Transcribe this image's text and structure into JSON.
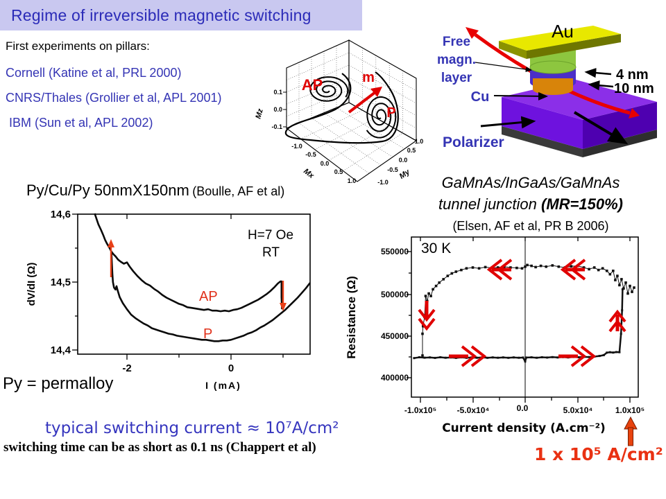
{
  "slide": {
    "title": "Regime of irreversible magnetic switching",
    "intro": "First experiments on pillars:",
    "references": [
      "Cornell (Katine et al, PRL 2000)",
      "CNRS/Thales (Grollier et al, APL 2001)",
      "IBM (Sun et al, APL 2002)"
    ],
    "py_note": "Py = permalloy",
    "typical_current": "typical switching current ≈ 10⁷A/cm²",
    "switching_time": "switching time can be as short as 0.1 ns (Chappert et al)",
    "threshold_label": "1 x 10⁵ A/cm²"
  },
  "device": {
    "au": "Au",
    "free_layer_lines": [
      "Free",
      "magn.",
      "layer"
    ],
    "cu": "Cu",
    "polarizer": "Polarizer",
    "t4": "4 nm",
    "t10": "10 nm",
    "colors": {
      "au_top": "#e8e800",
      "pillar_green": "#8dc63f",
      "free_blue": "#4b2fc8",
      "cu_orange": "#d8840a",
      "base_purple": "#8b2fe8",
      "arrow_red": "#e80000"
    }
  },
  "trajectory_plot": {
    "xlabel": "Mx",
    "ylabel": "My",
    "zlabel": "Mz",
    "xticks": [
      "-1.0",
      "-0.5",
      "0.0",
      "0.5",
      "1.0"
    ],
    "yticks": [
      "-1.0",
      "-0.5",
      "0.0",
      "0.5",
      "1.0"
    ],
    "zticks": [
      "0.1",
      "0.0",
      "-0.1"
    ],
    "ap": "AP",
    "p": "P",
    "m": "m"
  },
  "chart_data": [
    {
      "type": "line",
      "title": "Py/Cu/Py 50nmX150nm",
      "title_note": "(Boulle, AF et al)",
      "xlabel": "I (mA)",
      "ylabel": "dV/dI (Ω)",
      "xlim": [
        -2.95,
        1.52
      ],
      "ylim": [
        14.4,
        14.6
      ],
      "xticks": [
        -2,
        0
      ],
      "xtick_labels": [
        "-2",
        "0"
      ],
      "yticks": [
        14.6,
        14.5,
        14.4
      ],
      "ytick_labels": [
        "14,6",
        "14,5",
        "14,4"
      ],
      "grid": false,
      "annotations": {
        "field": "H=7 Oe",
        "temp": "RT",
        "ap": "AP",
        "p": "P"
      },
      "series": [
        {
          "name": "AP branch",
          "values": [
            [
              -2.62,
              14.601
            ],
            [
              -2.55,
              14.585
            ],
            [
              -2.5,
              14.577
            ],
            [
              -2.45,
              14.568
            ],
            [
              -2.42,
              14.562
            ],
            [
              -2.38,
              14.556
            ],
            [
              -2.34,
              14.551
            ],
            [
              -2.3,
              14.545
            ],
            [
              -2.26,
              14.541
            ],
            [
              -2.22,
              14.538
            ],
            [
              -2.17,
              14.533
            ],
            [
              -2.12,
              14.53
            ],
            [
              -2.06,
              14.527
            ],
            [
              -2.0,
              14.529
            ],
            [
              -1.95,
              14.523
            ],
            [
              -1.88,
              14.516
            ],
            [
              -1.8,
              14.509
            ],
            [
              -1.72,
              14.503
            ],
            [
              -1.64,
              14.498
            ],
            [
              -1.56,
              14.495
            ],
            [
              -1.48,
              14.49
            ],
            [
              -1.4,
              14.486
            ],
            [
              -1.32,
              14.481
            ],
            [
              -1.24,
              14.477
            ],
            [
              -1.16,
              14.474
            ],
            [
              -1.08,
              14.471
            ],
            [
              -1.0,
              14.468
            ],
            [
              -0.92,
              14.466
            ],
            [
              -0.84,
              14.463
            ],
            [
              -0.76,
              14.462
            ],
            [
              -0.68,
              14.461
            ],
            [
              -0.6,
              14.46
            ],
            [
              -0.52,
              14.459
            ],
            [
              -0.44,
              14.46
            ],
            [
              -0.36,
              14.458
            ],
            [
              -0.28,
              14.458
            ],
            [
              -0.2,
              14.457
            ],
            [
              -0.12,
              14.458
            ],
            [
              -0.04,
              14.457
            ],
            [
              0.04,
              14.459
            ],
            [
              0.12,
              14.46
            ],
            [
              0.2,
              14.462
            ],
            [
              0.28,
              14.465
            ],
            [
              0.36,
              14.468
            ],
            [
              0.44,
              14.471
            ],
            [
              0.52,
              14.474
            ],
            [
              0.6,
              14.478
            ],
            [
              0.68,
              14.482
            ],
            [
              0.76,
              14.487
            ],
            [
              0.84,
              14.493
            ],
            [
              0.9,
              14.498
            ],
            [
              0.95,
              14.501
            ],
            [
              0.97,
              14.501
            ],
            [
              0.97,
              14.478
            ],
            [
              0.98,
              14.46
            ]
          ]
        },
        {
          "name": "P branch",
          "values": [
            [
              -2.3,
              14.545
            ],
            [
              -2.29,
              14.527
            ],
            [
              -2.28,
              14.512
            ],
            [
              -2.27,
              14.5
            ],
            [
              -2.25,
              14.492
            ],
            [
              -2.22,
              14.489
            ],
            [
              -2.2,
              14.494
            ],
            [
              -2.18,
              14.488
            ],
            [
              -2.14,
              14.478
            ],
            [
              -2.08,
              14.469
            ],
            [
              -2.0,
              14.46
            ],
            [
              -1.92,
              14.452
            ],
            [
              -1.84,
              14.447
            ],
            [
              -1.76,
              14.443
            ],
            [
              -1.68,
              14.439
            ],
            [
              -1.6,
              14.436
            ],
            [
              -1.52,
              14.432
            ],
            [
              -1.44,
              14.43
            ],
            [
              -1.36,
              14.428
            ],
            [
              -1.28,
              14.426
            ],
            [
              -1.2,
              14.424
            ],
            [
              -1.12,
              14.423
            ],
            [
              -1.04,
              14.421
            ],
            [
              -0.96,
              14.42
            ],
            [
              -0.88,
              14.419
            ],
            [
              -0.8,
              14.418
            ],
            [
              -0.72,
              14.417
            ],
            [
              -0.64,
              14.416
            ],
            [
              -0.56,
              14.415
            ],
            [
              -0.48,
              14.415
            ],
            [
              -0.4,
              14.414
            ],
            [
              -0.32,
              14.413
            ],
            [
              -0.24,
              14.413
            ],
            [
              -0.16,
              14.414
            ],
            [
              -0.08,
              14.414
            ],
            [
              0.0,
              14.415
            ],
            [
              0.08,
              14.417
            ],
            [
              0.16,
              14.419
            ],
            [
              0.24,
              14.421
            ],
            [
              0.32,
              14.424
            ],
            [
              0.4,
              14.426
            ],
            [
              0.48,
              14.429
            ],
            [
              0.56,
              14.433
            ],
            [
              0.64,
              14.436
            ],
            [
              0.72,
              14.44
            ],
            [
              0.8,
              14.444
            ],
            [
              0.88,
              14.449
            ],
            [
              0.96,
              14.454
            ],
            [
              1.04,
              14.459
            ],
            [
              1.12,
              14.465
            ],
            [
              1.2,
              14.471
            ],
            [
              1.28,
              14.477
            ],
            [
              1.36,
              14.484
            ],
            [
              1.44,
              14.491
            ],
            [
              1.52,
              14.499
            ]
          ]
        }
      ]
    },
    {
      "type": "scatter",
      "title_line1": "GaMnAs/InGaAs/GaMnAs",
      "title_line2a": "tunnel junction ",
      "title_line2b": "(MR=150%)",
      "title_line3": "(Elsen, AF et al, PR B 2006)",
      "annotation": "30 K",
      "xlabel": "Current density (A.cm⁻²)",
      "ylabel": "Resistance (Ω)",
      "xlim": [
        -108000,
        108000
      ],
      "ylim": [
        376000,
        567000
      ],
      "xticks": [
        -100000,
        -50000,
        0,
        50000,
        100000
      ],
      "xtick_labels": [
        "-1.0x10⁵",
        "-5.0x10⁴",
        "0.0",
        "5.0x10⁴",
        "1.0x10⁵"
      ],
      "yticks": [
        550000,
        500000,
        450000,
        400000
      ],
      "ytick_labels": [
        "550000",
        "500000",
        "450000",
        "400000"
      ],
      "grid": false,
      "series": [
        {
          "name": "high resistance branch (AP)",
          "values": [
            [
              -98000,
              426000
            ],
            [
              -98000,
              452000
            ],
            [
              -97500,
              461000
            ],
            [
              -96000,
              472000
            ],
            [
              -95000,
              497000
            ],
            [
              -93500,
              491000
            ],
            [
              -92000,
              500000
            ],
            [
              -90000,
              497000
            ],
            [
              -88000,
              505000
            ],
            [
              -85000,
              509000
            ],
            [
              -82000,
              513000
            ],
            [
              -78000,
              517000
            ],
            [
              -74000,
              521000
            ],
            [
              -70000,
              524000
            ],
            [
              -66000,
              526000
            ],
            [
              -61000,
              528000
            ],
            [
              -56000,
              530000
            ],
            [
              -50000,
              531000
            ],
            [
              -44000,
              530000
            ],
            [
              -38000,
              531500
            ],
            [
              -32000,
              530500
            ],
            [
              -26000,
              531000
            ],
            [
              -20000,
              532000
            ],
            [
              -14000,
              531000
            ],
            [
              -8000,
              530500
            ],
            [
              -3000,
              530000
            ],
            [
              0,
              532000
            ],
            [
              2000,
              534000
            ],
            [
              6000,
              533000
            ],
            [
              10000,
              531500
            ],
            [
              15000,
              533000
            ],
            [
              20000,
              532000
            ],
            [
              26000,
              533500
            ],
            [
              32000,
              532000
            ],
            [
              38000,
              531000
            ],
            [
              44000,
              532500
            ],
            [
              50000,
              533000
            ],
            [
              56000,
              531000
            ],
            [
              61000,
              529000
            ],
            [
              66000,
              531000
            ],
            [
              70000,
              528000
            ],
            [
              74000,
              530000
            ],
            [
              78000,
              527000
            ],
            [
              81000,
              523000
            ],
            [
              84000,
              527000
            ],
            [
              86000,
              516000
            ],
            [
              88000,
              521000
            ],
            [
              90000,
              510000
            ],
            [
              92000,
              517000
            ],
            [
              94000,
              506000
            ],
            [
              96000,
              513000
            ],
            [
              98000,
              500000
            ],
            [
              100000,
              509000
            ],
            [
              102000,
              502000
            ],
            [
              104000,
              507000
            ]
          ]
        },
        {
          "name": "low resistance branch (P)",
          "values": [
            [
              -106000,
              423000
            ],
            [
              -101000,
              424000
            ],
            [
              -96000,
              423500
            ],
            [
              -91000,
              423800
            ],
            [
              -86000,
              423200
            ],
            [
              -81000,
              424000
            ],
            [
              -76000,
              423400
            ],
            [
              -71000,
              423800
            ],
            [
              -66000,
              423200
            ],
            [
              -61000,
              423900
            ],
            [
              -56000,
              423300
            ],
            [
              -51000,
              423800
            ],
            [
              -46000,
              423400
            ],
            [
              -41000,
              423900
            ],
            [
              -36000,
              423300
            ],
            [
              -31000,
              423800
            ],
            [
              -26000,
              423400
            ],
            [
              -21000,
              423800
            ],
            [
              -16000,
              423300
            ],
            [
              -11000,
              423800
            ],
            [
              -6000,
              423400
            ],
            [
              -2000,
              423600
            ],
            [
              0,
              419000
            ],
            [
              1000,
              423600
            ],
            [
              6000,
              423900
            ],
            [
              11000,
              423400
            ],
            [
              16000,
              424000
            ],
            [
              21000,
              423600
            ],
            [
              26000,
              424100
            ],
            [
              31000,
              423700
            ],
            [
              36000,
              424200
            ],
            [
              41000,
              423800
            ],
            [
              46000,
              424300
            ],
            [
              51000,
              424000
            ],
            [
              56000,
              424500
            ],
            [
              61000,
              424200
            ],
            [
              66000,
              424800
            ],
            [
              71000,
              425500
            ],
            [
              75000,
              426500
            ],
            [
              78000,
              429500
            ],
            [
              81000,
              430000
            ],
            [
              84000,
              429600
            ],
            [
              87000,
              430200
            ],
            [
              90000,
              430000
            ],
            [
              91500,
              452000
            ],
            [
              92500,
              480000
            ],
            [
              93000,
              505000
            ]
          ]
        }
      ]
    }
  ]
}
